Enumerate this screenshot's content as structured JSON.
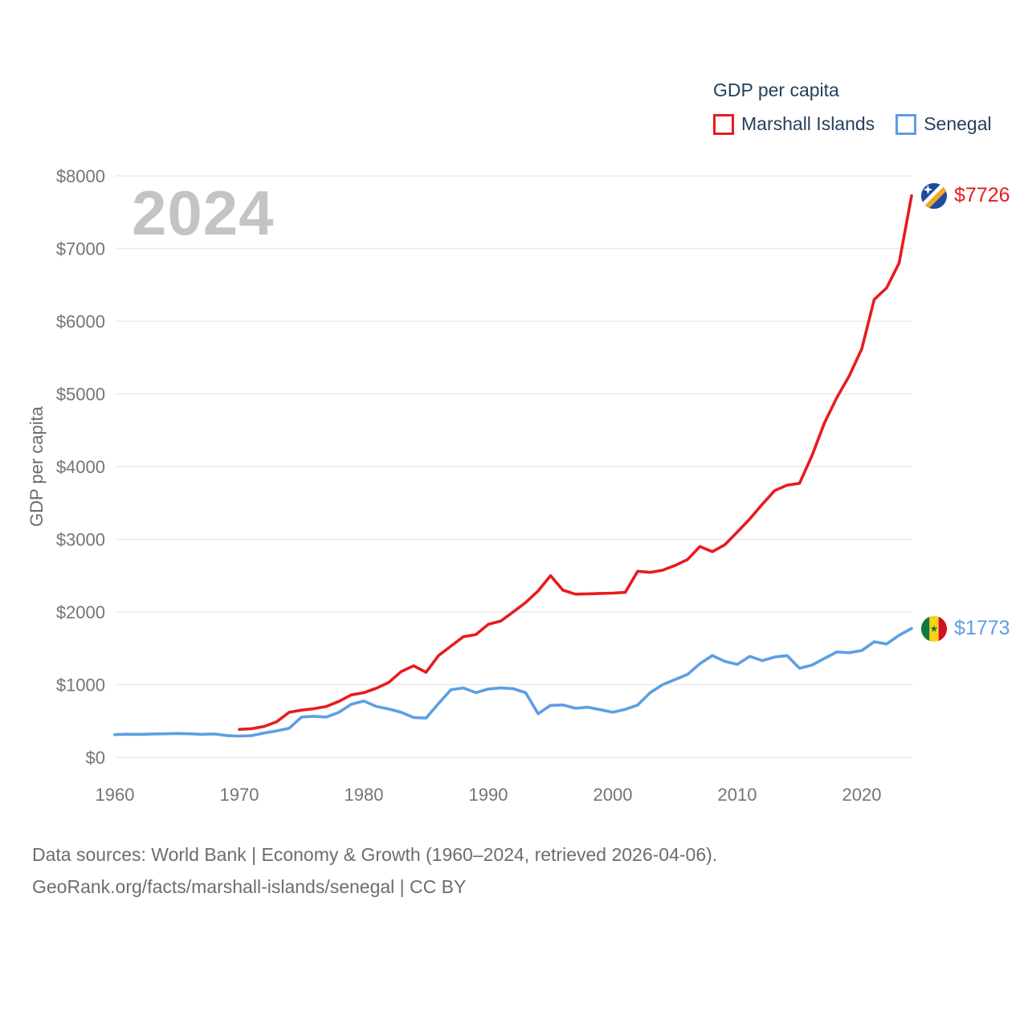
{
  "watermark": "2024",
  "legend": {
    "title": "GDP per capita"
  },
  "chart_data": {
    "type": "line",
    "title": "GDP per capita",
    "xlabel": "",
    "ylabel": "GDP per capita",
    "x_range": [
      1960,
      2024
    ],
    "ylim": [
      0,
      8000
    ],
    "grid": "horizontal",
    "legend_position": "top-right",
    "x_ticks": [
      1960,
      1970,
      1980,
      1990,
      2000,
      2010,
      2020
    ],
    "y_tick_labels": [
      "$0",
      "$1000",
      "$2000",
      "$3000",
      "$4000",
      "$5000",
      "$6000",
      "$7000",
      "$8000"
    ],
    "series": [
      {
        "id": "marshall-islands",
        "name": "Marshall Islands",
        "color": "#e81b1e",
        "flag": "marshall-islands-flag",
        "start_year": 1970,
        "end_year": 2024,
        "end_label": "$7726",
        "values": [
          385,
          395,
          425,
          490,
          620,
          650,
          670,
          700,
          770,
          860,
          890,
          950,
          1030,
          1180,
          1260,
          1170,
          1400,
          1530,
          1660,
          1690,
          1830,
          1875,
          2000,
          2130,
          2290,
          2500,
          2300,
          2245,
          2250,
          2255,
          2260,
          2270,
          2560,
          2545,
          2575,
          2640,
          2720,
          2900,
          2830,
          2925,
          3100,
          3280,
          3480,
          3670,
          3745,
          3770,
          4150,
          4600,
          4950,
          5250,
          5620,
          6300,
          6460,
          6800,
          7726
        ]
      },
      {
        "id": "senegal",
        "name": "Senegal",
        "color": "#5d9fe2",
        "flag": "senegal-flag",
        "start_year": 1960,
        "end_year": 2024,
        "end_label": "$1773",
        "values": [
          313,
          318,
          316,
          321,
          324,
          328,
          324,
          317,
          321,
          300,
          293,
          300,
          335,
          365,
          400,
          555,
          565,
          555,
          620,
          730,
          775,
          700,
          665,
          620,
          548,
          540,
          740,
          930,
          955,
          890,
          940,
          955,
          945,
          890,
          600,
          715,
          720,
          675,
          690,
          655,
          620,
          660,
          720,
          890,
          1000,
          1070,
          1140,
          1290,
          1400,
          1320,
          1280,
          1390,
          1330,
          1380,
          1400,
          1225,
          1270,
          1360,
          1450,
          1440,
          1470,
          1590,
          1560,
          1680,
          1773
        ]
      }
    ]
  },
  "footer": {
    "line1": "Data sources: World Bank | Economy & Growth (1960–2024, retrieved 2026-04-06).",
    "line2": "GeoRank.org/facts/marshall-islands/senegal | CC BY"
  }
}
